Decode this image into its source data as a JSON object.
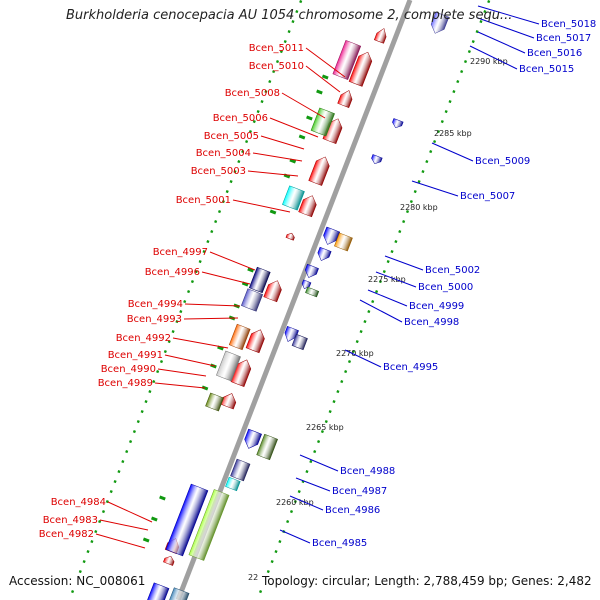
{
  "title": "Burkholderia cenocepacia AU 1054 chromosome 2, complete sequ...",
  "footer": {
    "accession": "Accession: NC_008061",
    "topology": "Topology: circular; Length: 2,788,459 bp; Genes: 2,482"
  },
  "colors": {
    "backbone": "#a0a0a0",
    "forward_label": "#dd0000",
    "reverse_label": "#0000cc",
    "tick": "#119911"
  },
  "kbp_markers": [
    "2290 kbp",
    "2285 kbp",
    "2280 kbp",
    "2275 kbp",
    "2270 kbp",
    "2265 kbp",
    "2260 kbp",
    "22"
  ],
  "left_labels": [
    "Bcen_5011",
    "Bcen_5010",
    "Bcen_5008",
    "Bcen_5006",
    "Bcen_5005",
    "Bcen_5004",
    "Bcen_5003",
    "Bcen_5001",
    "Bcen_4997",
    "Bcen_4996",
    "Bcen_4994",
    "Bcen_4993",
    "Bcen_4992",
    "Bcen_4991",
    "Bcen_4990",
    "Bcen_4989",
    "Bcen_4984",
    "Bcen_4983",
    "Bcen_4982"
  ],
  "right_labels": [
    "Bcen_5018",
    "Bcen_5017",
    "Bcen_5016",
    "Bcen_5015",
    "Bcen_5009",
    "Bcen_5007",
    "Bcen_5002",
    "Bcen_5000",
    "Bcen_4999",
    "Bcen_4998",
    "Bcen_4995",
    "Bcen_4988",
    "Bcen_4987",
    "Bcen_4986",
    "Bcen_4985"
  ]
}
